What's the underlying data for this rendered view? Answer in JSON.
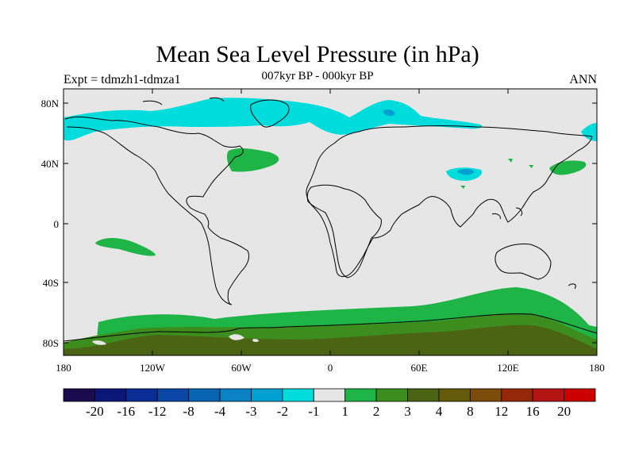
{
  "title": "Mean Sea Level Pressure (in hPa)",
  "left_string": "Expt = tdmzh1-tdmza1",
  "center_string": "007kyr BP - 000kyr BP",
  "right_string": "ANN",
  "lat_ticks": [
    "80N",
    "40N",
    "0",
    "40S",
    "80S"
  ],
  "lon_ticks": [
    "180",
    "120W",
    "60W",
    "0",
    "60E",
    "120E",
    "180"
  ],
  "colorbar": {
    "colors": [
      "#1a0a4e",
      "#0a1678",
      "#0a2d96",
      "#0a46a5",
      "#0a64b4",
      "#0a82c3",
      "#00a0d2",
      "#00dcdc",
      "#e6e6e6",
      "#1eb446",
      "#3c8c1e",
      "#4b6414",
      "#645a0a",
      "#7d4b0a",
      "#96280a",
      "#b41414",
      "#cd0000"
    ],
    "labels": [
      "-20",
      "-16",
      "-12",
      "-8",
      "-4",
      "-3",
      "-2",
      "-1",
      "1",
      "2",
      "3",
      "4",
      "8",
      "12",
      "16",
      "20"
    ]
  },
  "anomaly_colors": {
    "background": "#e6e6e6",
    "neg_light": "#00dcdc",
    "neg_mid": "#00a0d2",
    "pos_1": "#1eb446",
    "pos_2": "#3c8c1e",
    "pos_3": "#4b6414"
  }
}
